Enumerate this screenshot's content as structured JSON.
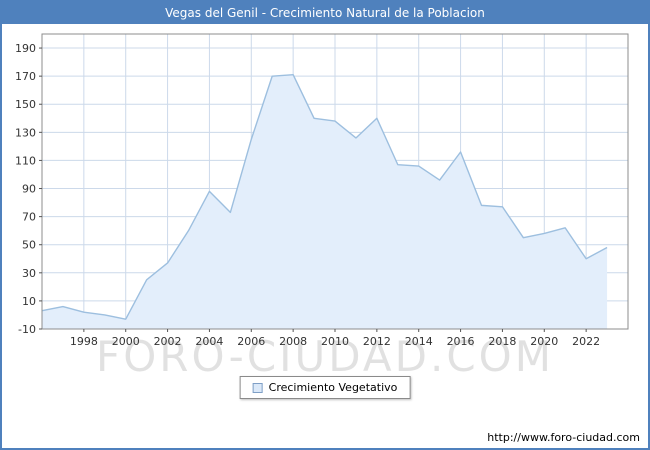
{
  "header": {
    "title": "Vegas del Genil - Crecimiento Natural de la Poblacion"
  },
  "legend": {
    "label": "Crecimiento Vegetativo"
  },
  "watermark": "FORO-CIUDAD.COM",
  "footer": {
    "url": "http://www.foro-ciudad.com"
  },
  "colors": {
    "accent": "#4f81bd",
    "grid": "#ccd9ea",
    "frame": "#8c8c8c",
    "axis_text": "#333333",
    "area_fill": "#e3eefb",
    "line": "#9dbfdf"
  },
  "chart_data": {
    "type": "area",
    "title": "Vegas del Genil - Crecimiento Natural de la Poblacion",
    "xlabel": "",
    "ylabel": "",
    "x": [
      1996,
      1997,
      1998,
      1999,
      2000,
      2001,
      2002,
      2003,
      2004,
      2005,
      2006,
      2007,
      2008,
      2009,
      2010,
      2011,
      2012,
      2013,
      2014,
      2015,
      2016,
      2017,
      2018,
      2019,
      2020,
      2021,
      2022,
      2023
    ],
    "series": [
      {
        "name": "Crecimiento Vegetativo",
        "values": [
          3,
          6,
          2,
          0,
          -3,
          25,
          37,
          60,
          88,
          73,
          125,
          170,
          171,
          140,
          138,
          126,
          140,
          107,
          106,
          96,
          116,
          78,
          77,
          55,
          58,
          62,
          40,
          48
        ]
      }
    ],
    "xlim": [
      1996,
      2024
    ],
    "ylim": [
      -10,
      200
    ],
    "xticks": [
      1998,
      2000,
      2002,
      2004,
      2006,
      2008,
      2010,
      2012,
      2014,
      2016,
      2018,
      2020,
      2022
    ],
    "yticks": [
      -10,
      10,
      30,
      50,
      70,
      90,
      110,
      130,
      150,
      170,
      190
    ],
    "grid": true,
    "legend_position": "bottom"
  }
}
